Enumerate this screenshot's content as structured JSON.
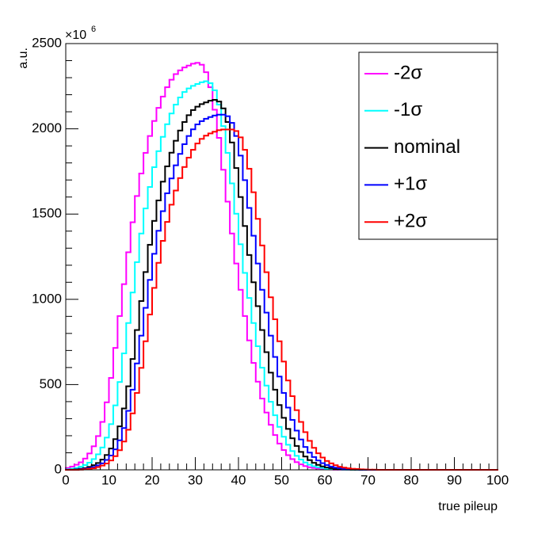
{
  "chart_data": {
    "type": "histogram",
    "y_label": "a.u.",
    "x_label": "true pileup",
    "y_scale_label": {
      "text": "×10",
      "exponent": "6"
    },
    "legend": "top right",
    "bins": [
      0,
      1,
      2,
      3,
      4,
      5,
      6,
      7,
      8,
      9,
      10,
      11,
      12,
      13,
      14,
      15,
      16,
      17,
      18,
      19,
      20,
      21,
      22,
      23,
      24,
      25,
      26,
      27,
      28,
      29,
      30,
      31,
      32,
      33,
      34,
      35,
      36,
      37,
      38,
      39,
      40,
      41,
      42,
      43,
      44,
      45,
      46,
      47,
      48,
      49,
      50,
      51,
      52,
      53,
      54,
      55,
      56,
      57,
      58,
      59,
      60,
      61,
      62,
      63,
      64,
      65,
      66,
      67,
      68,
      69,
      70,
      71,
      72,
      73,
      74,
      75,
      76,
      77,
      78,
      79,
      80,
      81,
      82,
      83,
      84,
      85,
      86,
      87,
      88,
      89,
      90,
      91,
      92,
      93,
      94,
      95,
      96,
      97,
      98,
      99,
      100
    ],
    "series": [
      {
        "name": "-2σ",
        "color": "#ff00ff",
        "values": [
          11,
          19,
          30,
          44,
          66,
          96,
          138,
          198,
          281,
          396,
          539,
          715,
          902,
          1089,
          1276,
          1452,
          1606,
          1738,
          1859,
          1958,
          2046,
          2123,
          2189,
          2244,
          2288,
          2321,
          2343,
          2360,
          2371,
          2382,
          2387,
          2376,
          2332,
          2244,
          2112,
          1947,
          1760,
          1573,
          1386,
          1210,
          1056,
          902,
          759,
          627,
          517,
          418,
          336,
          264,
          204,
          154,
          116,
          86,
          63,
          45,
          32,
          22,
          15,
          11,
          8,
          6,
          3,
          2,
          1,
          1,
          0,
          0,
          0,
          0,
          0,
          0,
          0,
          0,
          0,
          0,
          0,
          0,
          0,
          0,
          0,
          0,
          0,
          0,
          0,
          0,
          0,
          0,
          0,
          0,
          0,
          0,
          0,
          0,
          0,
          0,
          0,
          0,
          0,
          0,
          0,
          0
        ]
      },
      {
        "name": "-1σ",
        "color": "#00ffff",
        "values": [
          3,
          6,
          11,
          18,
          28,
          42,
          63,
          91,
          131,
          189,
          268,
          378,
          515,
          683,
          861,
          1040,
          1218,
          1386,
          1533,
          1659,
          1775,
          1869,
          1953,
          2027,
          2090,
          2142,
          2184,
          2216,
          2237,
          2252,
          2263,
          2273,
          2279,
          2268,
          2226,
          2142,
          2016,
          1859,
          1680,
          1502,
          1323,
          1155,
          1008,
          861,
          725,
          599,
          494,
          399,
          320,
          252,
          194,
          147,
          110,
          82,
          60,
          43,
          30,
          21,
          15,
          11,
          7,
          5,
          3,
          2,
          1,
          1,
          0,
          0,
          0,
          0,
          0,
          0,
          0,
          0,
          0,
          0,
          0,
          0,
          0,
          0,
          0,
          0,
          0,
          0,
          0,
          0,
          0,
          0,
          0,
          0,
          0,
          0,
          0,
          0,
          0,
          0,
          0,
          0,
          0,
          0
        ]
      },
      {
        "name": "nominal",
        "color": "#000000",
        "values": [
          0,
          1,
          3,
          6,
          10,
          17,
          27,
          40,
          60,
          87,
          125,
          180,
          255,
          360,
          490,
          650,
          820,
          990,
          1160,
          1320,
          1460,
          1580,
          1690,
          1780,
          1860,
          1930,
          1990,
          2040,
          2080,
          2110,
          2130,
          2145,
          2155,
          2165,
          2170,
          2160,
          2120,
          2040,
          1920,
          1770,
          1600,
          1430,
          1260,
          1100,
          960,
          820,
          690,
          570,
          470,
          380,
          305,
          240,
          185,
          140,
          105,
          78,
          57,
          41,
          29,
          20,
          14,
          10,
          7,
          5,
          3,
          2,
          1,
          1,
          0,
          0,
          0,
          0,
          0,
          0,
          0,
          0,
          0,
          0,
          0,
          0,
          0,
          0,
          0,
          0,
          0,
          0,
          0,
          0,
          0,
          0,
          0,
          0,
          0,
          0,
          0,
          0,
          0,
          0,
          0,
          0
        ]
      },
      {
        "name": "+1σ",
        "color": "#0000ff",
        "values": [
          0,
          0,
          1,
          3,
          6,
          10,
          16,
          26,
          38,
          58,
          84,
          120,
          173,
          245,
          346,
          470,
          624,
          787,
          950,
          1114,
          1267,
          1402,
          1517,
          1622,
          1709,
          1786,
          1853,
          1910,
          1958,
          1997,
          2026,
          2045,
          2059,
          2069,
          2078,
          2083,
          2083,
          2074,
          2035,
          1958,
          1843,
          1699,
          1536,
          1373,
          1210,
          1056,
          922,
          787,
          662,
          547,
          451,
          365,
          293,
          230,
          178,
          134,
          101,
          75,
          55,
          39,
          28,
          19,
          13,
          10,
          7,
          5,
          3,
          2,
          1,
          1,
          0,
          0,
          0,
          0,
          0,
          0,
          0,
          0,
          0,
          0,
          0,
          0,
          0,
          0,
          0,
          0,
          0,
          0,
          0,
          0,
          0,
          0,
          0,
          0,
          0,
          0,
          0,
          0,
          0,
          0
        ]
      },
      {
        "name": "+2σ",
        "color": "#ff0000",
        "values": [
          0,
          0,
          0,
          1,
          3,
          6,
          9,
          16,
          25,
          37,
          55,
          80,
          115,
          166,
          235,
          331,
          451,
          598,
          754,
          911,
          1067,
          1214,
          1343,
          1454,
          1555,
          1638,
          1711,
          1776,
          1831,
          1877,
          1914,
          1941,
          1960,
          1973,
          1983,
          1992,
          1996,
          1996,
          1996,
          1987,
          1950,
          1877,
          1766,
          1628,
          1472,
          1316,
          1159,
          1012,
          883,
          754,
          635,
          524,
          432,
          350,
          281,
          221,
          170,
          129,
          97,
          72,
          52,
          38,
          27,
          18,
          13,
          9,
          6,
          5,
          3,
          2,
          1,
          1,
          0,
          0,
          0,
          0,
          0,
          0,
          0,
          0,
          0,
          0,
          0,
          0,
          0,
          0,
          0,
          0,
          0,
          0,
          0,
          0,
          0,
          0,
          0,
          0,
          0,
          0,
          0,
          0
        ]
      }
    ],
    "xlim": [
      0,
      100
    ],
    "xticks": [
      0,
      10,
      20,
      30,
      40,
      50,
      60,
      70,
      80,
      90,
      100
    ],
    "ylim": [
      0,
      2500
    ],
    "yticks": [
      0,
      500,
      1000,
      1500,
      2000,
      2500
    ]
  }
}
